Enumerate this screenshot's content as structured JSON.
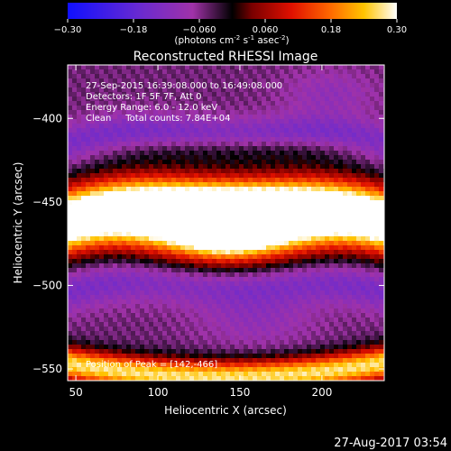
{
  "chart_data": {
    "type": "heatmap",
    "title": "Reconstructed RHESSI Image",
    "colorbar": {
      "ticks": [
        "-0.30",
        "-0.18",
        "-0.060",
        "0.060",
        "0.18",
        "0.30"
      ],
      "range": [
        -0.3,
        0.3
      ],
      "unit_label_parts": {
        "a": "(photons cm",
        "a_sup": "-2",
        "b": " s",
        "b_sup": "-1",
        "c": " asec",
        "c_sup": "-2",
        "d": ")"
      }
    },
    "xlabel": "Heliocentric X (arcsec)",
    "ylabel": "Heliocentric Y (arcsec)",
    "xlim": [
      45,
      238
    ],
    "ylim": [
      -557,
      -368
    ],
    "x_ticks": [
      50,
      100,
      150,
      200
    ],
    "y_ticks": [
      -400,
      -450,
      -500,
      -550
    ],
    "x_tick_labels": [
      "50",
      "100",
      "150",
      "200"
    ],
    "y_tick_labels": [
      "−400",
      "−450",
      "−500",
      "−550"
    ],
    "annotations": [
      "27-Sep-2015 16:39:08.000 to 16:49:08.000",
      "Detectors: 1F 5F 7F, Att 0",
      "Energy Range: 6.0 - 12.0 keV",
      "Clean     Total counts: 7.84E+04"
    ],
    "peak_label": "Position of Peak = [142,-466]",
    "peak": [
      142,
      -466
    ],
    "timestamp": "27-Aug-2017 03:54",
    "colormap": [
      [
        0.0,
        "#1010ff"
      ],
      [
        0.22,
        "#6a2ad0"
      ],
      [
        0.38,
        "#a032a8"
      ],
      [
        0.5,
        "#000000"
      ],
      [
        0.56,
        "#7a0000"
      ],
      [
        0.68,
        "#e01000"
      ],
      [
        0.8,
        "#ff6a00"
      ],
      [
        0.9,
        "#ffc400"
      ],
      [
        1.0,
        "#ffffff"
      ]
    ]
  }
}
